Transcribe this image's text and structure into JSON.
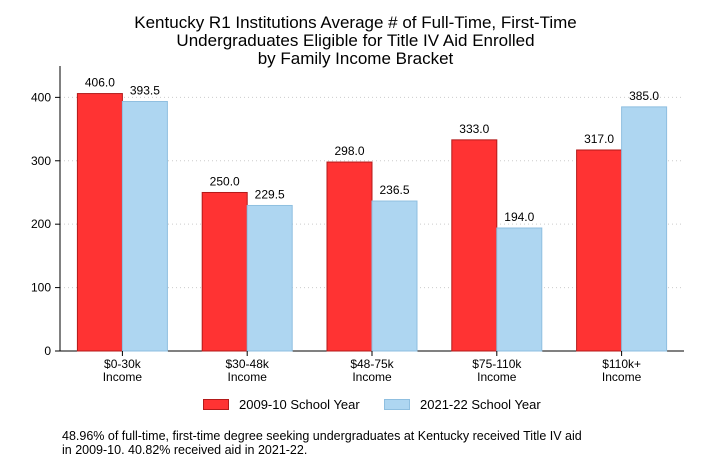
{
  "chart_data": {
    "type": "bar",
    "title_lines": [
      "Kentucky R1 Institutions Average # of Full-Time, First-Time",
      "Undergraduates Eligible for Title IV Aid Enrolled",
      "by Family Income Bracket"
    ],
    "categories": [
      [
        "$0-30k",
        "Income"
      ],
      [
        "$30-48k",
        "Income"
      ],
      [
        "$48-75k",
        "Income"
      ],
      [
        "$75-110k",
        "Income"
      ],
      [
        "$110k+",
        "Income"
      ]
    ],
    "series": [
      {
        "name": "2009-10 School Year",
        "values": [
          406.0,
          250.0,
          298.0,
          333.0,
          317.0
        ],
        "labels": [
          "406.0",
          "250.0",
          "298.0",
          "333.0",
          "317.0"
        ],
        "color": "#ff3333",
        "edge": "#b31a1a"
      },
      {
        "name": "2021-22 School Year",
        "values": [
          393.5,
          229.5,
          236.5,
          194.0,
          385.0
        ],
        "labels": [
          "393.5",
          "229.5",
          "236.5",
          "194.0",
          "385.0"
        ],
        "color": "#aed6f1",
        "edge": "#8fbfe0"
      }
    ],
    "yticks": [
      "0",
      "100",
      "200",
      "300",
      "400"
    ],
    "ylim": [
      0,
      440
    ],
    "grid": true,
    "legend_position": "bottom"
  },
  "footnote_lines": [
    "48.96% of full-time, first-time degree seeking undergraduates at Kentucky received Title IV aid",
    "in 2009-10. 40.82% received aid in 2021-22."
  ]
}
